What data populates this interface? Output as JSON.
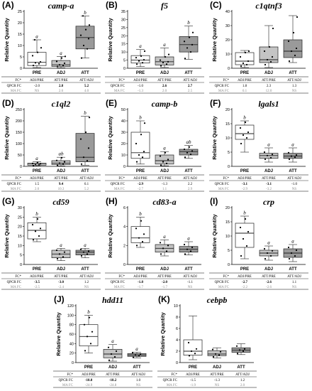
{
  "colors": {
    "PRE": "#ffffff",
    "ADJ": "#c4c4c4",
    "ATT": "#9a9a9a",
    "line": "#222222",
    "grey_text": "#8a8a8a"
  },
  "categories": [
    "PRE",
    "ADJ",
    "ATT"
  ],
  "ylabel": "Relative Quantity",
  "table_headers": [
    "FC*",
    "ADJ/PRE",
    "ATT/PRE",
    "ATT/ADJ"
  ],
  "table_row_labels": [
    "QPCR FC",
    "MA FC"
  ],
  "chart_data": [
    {
      "panel": "(A)",
      "title": "camp-a",
      "type": "box",
      "ylim": [
        0,
        25
      ],
      "yticks": [
        0,
        5,
        10,
        15,
        20,
        25
      ],
      "categories": [
        "PRE",
        "ADJ",
        "ATT"
      ],
      "boxes": [
        {
          "min": 0.3,
          "q1": 1.2,
          "median": 2.6,
          "q3": 7.0,
          "max": 12.5,
          "points": [
            1.2,
            2.0,
            2.4,
            2.8,
            5.5,
            7.0,
            9.0,
            12.5
          ]
        },
        {
          "min": 0.2,
          "q1": 0.8,
          "median": 1.5,
          "q3": 3.4,
          "max": 5.2,
          "points": [
            0.8,
            1.2,
            1.5,
            2.2,
            3.0,
            4.5,
            5.2
          ]
        },
        {
          "min": 4.5,
          "q1": 8.5,
          "median": 13.5,
          "q3": 18.5,
          "max": 23.0,
          "points": [
            4.5,
            8.5,
            10.0,
            13.0,
            14.5,
            17.0,
            19.0,
            23.0
          ]
        }
      ],
      "letters": [
        "a",
        "a",
        "b"
      ],
      "qpcr_fc": [
        "-2.0",
        "2.8",
        "5.2"
      ],
      "qpcr_bold": [
        false,
        true,
        true
      ],
      "ma_fc": [
        "NS",
        "2.6",
        "4.0"
      ]
    },
    {
      "panel": "(B)",
      "title": "f5",
      "type": "box",
      "ylim": [
        0,
        35
      ],
      "yticks": [
        0,
        5,
        10,
        15,
        20,
        25,
        30,
        35
      ],
      "categories": [
        "PRE",
        "ADJ",
        "ATT"
      ],
      "boxes": [
        {
          "min": 1.0,
          "q1": 3.2,
          "median": 5.0,
          "q3": 7.8,
          "max": 11.5,
          "points": [
            2.5,
            3.4,
            4.5,
            5.2,
            6.5,
            7.5,
            10.5
          ]
        },
        {
          "min": 0.5,
          "q1": 2.0,
          "median": 4.0,
          "q3": 7.0,
          "max": 12.5,
          "points": [
            1.5,
            2.5,
            3.5,
            4.0,
            5.0,
            7.0,
            8.5
          ]
        },
        {
          "min": 5.5,
          "q1": 10.0,
          "median": 14.5,
          "q3": 19.5,
          "max": 26.0,
          "points": [
            6.0,
            10.0,
            12.5,
            14.5,
            16.5,
            19.0,
            22.0
          ]
        }
      ],
      "letters": [
        "a",
        "a",
        "b"
      ],
      "qpcr_fc": [
        "-1.0",
        "2.6",
        "2.7"
      ],
      "qpcr_bold": [
        false,
        true,
        true
      ],
      "ma_fc": [
        "-1.3",
        "2.0",
        "2.5"
      ]
    },
    {
      "panel": "(C)",
      "title": "c1qtnf3",
      "type": "box",
      "ylim": [
        0,
        40
      ],
      "yticks": [
        0,
        10,
        20,
        30,
        40
      ],
      "categories": [
        "PRE",
        "ADJ",
        "ATT"
      ],
      "boxes": [
        {
          "min": 0.5,
          "q1": 2.5,
          "median": 5.0,
          "q3": 11.0,
          "max": 12.5,
          "points": [
            1.5,
            2.5,
            3.5,
            5.0,
            8.0,
            11.0,
            12.0
          ]
        },
        {
          "min": 0.5,
          "q1": 4.0,
          "median": 6.0,
          "q3": 15.0,
          "max": 30.0,
          "points": [
            2.5,
            4.5,
            6.0,
            8.0,
            12.0,
            15.0,
            28.0
          ]
        },
        {
          "min": 4.0,
          "q1": 7.5,
          "median": 12.0,
          "q3": 20.0,
          "max": 37.0,
          "points": [
            5.0,
            9.0,
            12.0,
            14.0,
            19.0,
            25.0,
            36.0
          ]
        }
      ],
      "letters": [
        "",
        "",
        ""
      ],
      "qpcr_fc": [
        "1.8",
        "2.3",
        "1.3"
      ],
      "qpcr_bold": [
        false,
        false,
        false
      ],
      "ma_fc": [
        "6.1",
        "12.0",
        "NS"
      ]
    },
    {
      "panel": "(D)",
      "title": "c1ql2",
      "type": "box",
      "ylim": [
        0,
        250
      ],
      "yticks": [
        0,
        50,
        100,
        150,
        200,
        250
      ],
      "categories": [
        "PRE",
        "ADJ",
        "ATT"
      ],
      "boxes": [
        {
          "min": 1.0,
          "q1": 5.0,
          "median": 10.0,
          "q3": 14.0,
          "max": 20.0,
          "points": [
            3.0,
            6.0,
            8.0,
            11.0,
            13.0,
            17.0
          ]
        },
        {
          "min": 2.0,
          "q1": 8.0,
          "median": 14.0,
          "q3": 25.0,
          "max": 40.0,
          "points": [
            5.0,
            9.0,
            14.0,
            20.0,
            26.0,
            38.0
          ]
        },
        {
          "min": 5.0,
          "q1": 20.0,
          "median": 40.0,
          "q3": 145.0,
          "max": 220.0,
          "points": [
            10.0,
            25.0,
            40.0,
            80.0,
            120.0,
            150.0,
            215.0
          ]
        }
      ],
      "letters": [
        "a",
        "ab",
        "b"
      ],
      "qpcr_fc": [
        "1.5",
        "9.4",
        "6.1"
      ],
      "qpcr_bold": [
        false,
        true,
        false
      ],
      "ma_fc": [
        "2.0",
        "10.3",
        "5.2"
      ]
    },
    {
      "panel": "(E)",
      "title": "camp-b",
      "type": "box",
      "ylim": [
        0,
        50
      ],
      "yticks": [
        0,
        10,
        20,
        30,
        40,
        50
      ],
      "categories": [
        "PRE",
        "ADJ",
        "ATT"
      ],
      "boxes": [
        {
          "min": 2.0,
          "q1": 7.0,
          "median": 12.0,
          "q3": 30.0,
          "max": 40.0,
          "points": [
            4.0,
            8.0,
            10.0,
            13.0,
            20.0,
            28.0,
            38.0
          ]
        },
        {
          "min": 0.5,
          "q1": 2.0,
          "median": 5.0,
          "q3": 10.0,
          "max": 13.0,
          "points": [
            1.0,
            2.5,
            4.0,
            6.0,
            9.0,
            12.0
          ]
        },
        {
          "min": 7.0,
          "q1": 10.0,
          "median": 13.0,
          "q3": 15.0,
          "max": 18.5,
          "points": [
            8.0,
            10.5,
            12.0,
            13.5,
            15.0,
            17.0
          ]
        }
      ],
      "letters": [
        "b",
        "a",
        "ab"
      ],
      "qpcr_fc": [
        "-2.9",
        "-1.3",
        "2.2"
      ],
      "qpcr_bold": [
        true,
        false,
        false
      ],
      "ma_fc": [
        "-2.7",
        "1.1",
        "2.9"
      ]
    },
    {
      "panel": "(F)",
      "title": "lgals1",
      "type": "box",
      "ylim": [
        0,
        20
      ],
      "yticks": [
        0,
        5,
        10,
        15,
        20
      ],
      "categories": [
        "PRE",
        "ADJ",
        "ATT"
      ],
      "boxes": [
        {
          "min": 5.0,
          "q1": 9.5,
          "median": 11.5,
          "q3": 14.5,
          "max": 16.0,
          "points": [
            8.0,
            10.0,
            11.0,
            12.0,
            13.5,
            15.5
          ]
        },
        {
          "min": 1.5,
          "q1": 2.8,
          "median": 3.8,
          "q3": 4.6,
          "max": 6.5,
          "points": [
            2.5,
            3.0,
            3.8,
            4.2,
            5.0
          ]
        },
        {
          "min": 1.5,
          "q1": 2.8,
          "median": 3.6,
          "q3": 4.6,
          "max": 6.5,
          "points": [
            2.5,
            3.2,
            3.6,
            4.0,
            4.8
          ]
        }
      ],
      "letters": [
        "b",
        "a",
        "a"
      ],
      "qpcr_fc": [
        "-3.1",
        "-3.1",
        "-1.0"
      ],
      "qpcr_bold": [
        true,
        true,
        false
      ],
      "ma_fc": [
        "-2.9",
        "-3.2",
        "NS"
      ]
    },
    {
      "panel": "(G)",
      "title": "cd59",
      "type": "box",
      "ylim": [
        0,
        30
      ],
      "yticks": [
        0,
        5,
        10,
        15,
        20,
        25,
        30
      ],
      "categories": [
        "PRE",
        "ADJ",
        "ATT"
      ],
      "boxes": [
        {
          "min": 12.0,
          "q1": 13.5,
          "median": 18.0,
          "q3": 22.0,
          "max": 25.0,
          "points": [
            13.0,
            15.0,
            17.5,
            19.0,
            21.0,
            24.0
          ]
        },
        {
          "min": 2.0,
          "q1": 3.5,
          "median": 5.5,
          "q3": 7.5,
          "max": 8.5,
          "points": [
            3.0,
            4.0,
            5.5,
            6.5,
            7.5
          ]
        },
        {
          "min": 3.5,
          "q1": 5.0,
          "median": 6.5,
          "q3": 7.5,
          "max": 8.5,
          "points": [
            4.5,
            5.5,
            6.5,
            7.0,
            8.0
          ]
        }
      ],
      "letters": [
        "b",
        "a",
        "a"
      ],
      "qpcr_fc": [
        "-3.5",
        "-3.0",
        "1.2"
      ],
      "qpcr_bold": [
        true,
        true,
        false
      ],
      "ma_fc": [
        "-2.5",
        "-2.4",
        "NS"
      ]
    },
    {
      "panel": "(H)",
      "title": "cd83-a",
      "type": "box",
      "ylim": [
        0,
        6
      ],
      "yticks": [
        0,
        2,
        4,
        6
      ],
      "categories": [
        "PRE",
        "ADJ",
        "ATT"
      ],
      "boxes": [
        {
          "min": 1.8,
          "q1": 2.3,
          "median": 2.8,
          "q3": 4.0,
          "max": 5.0,
          "points": [
            2.0,
            2.4,
            2.8,
            3.2,
            3.8,
            4.6
          ]
        },
        {
          "min": 0.9,
          "q1": 1.3,
          "median": 1.7,
          "q3": 2.1,
          "max": 2.6,
          "points": [
            1.1,
            1.4,
            1.7,
            2.0,
            2.3
          ]
        },
        {
          "min": 1.0,
          "q1": 1.3,
          "median": 1.6,
          "q3": 1.9,
          "max": 2.4,
          "points": [
            1.1,
            1.4,
            1.6,
            1.8,
            2.1
          ]
        }
      ],
      "letters": [
        "b",
        "a",
        "a"
      ],
      "qpcr_fc": [
        "-1.8",
        "-2.0",
        "-1.1"
      ],
      "qpcr_bold": [
        true,
        true,
        false
      ],
      "ma_fc": [
        "-1.7",
        "-1.7",
        "NS"
      ]
    },
    {
      "panel": "(I)",
      "title": "crp",
      "type": "box",
      "ylim": [
        0,
        20
      ],
      "yticks": [
        0,
        5,
        10,
        15,
        20
      ],
      "categories": [
        "PRE",
        "ADJ",
        "ATT"
      ],
      "boxes": [
        {
          "min": 2.0,
          "q1": 6.0,
          "median": 11.0,
          "q3": 14.5,
          "max": 17.0,
          "points": [
            3.0,
            6.5,
            9.0,
            11.5,
            13.0,
            16.0
          ]
        },
        {
          "min": 1.5,
          "q1": 3.0,
          "median": 4.0,
          "q3": 5.0,
          "max": 6.5,
          "points": [
            2.0,
            3.0,
            4.0,
            4.8,
            5.5
          ]
        },
        {
          "min": 1.0,
          "q1": 2.5,
          "median": 4.0,
          "q3": 5.5,
          "max": 7.0,
          "points": [
            2.0,
            3.0,
            4.0,
            5.0,
            6.0
          ]
        }
      ],
      "letters": [
        "b",
        "a",
        "a"
      ],
      "qpcr_fc": [
        "-2.7",
        "-2.6",
        "1.1"
      ],
      "qpcr_bold": [
        true,
        true,
        false
      ],
      "ma_fc": [
        "-2.2",
        "-2.6",
        "NS"
      ]
    },
    {
      "panel": "(J)",
      "title": "hdd11",
      "type": "box",
      "ylim": [
        0,
        120
      ],
      "yticks": [
        0,
        20,
        40,
        60,
        80,
        100,
        120
      ],
      "categories": [
        "PRE",
        "ADJ",
        "ATT"
      ],
      "boxes": [
        {
          "min": 20.0,
          "q1": 35.0,
          "median": 55.0,
          "q3": 80.0,
          "max": 100.0,
          "points": [
            25.0,
            40.0,
            55.0,
            65.0,
            80.0,
            95.0
          ]
        },
        {
          "min": 3.0,
          "q1": 10.0,
          "median": 18.0,
          "q3": 28.0,
          "max": 38.0,
          "points": [
            5.0,
            12.0,
            18.0,
            24.0,
            32.0
          ]
        },
        {
          "min": 10.0,
          "q1": 13.0,
          "median": 16.0,
          "q3": 19.0,
          "max": 22.0,
          "points": [
            11.0,
            14.0,
            16.0,
            18.0,
            21.0
          ]
        }
      ],
      "letters": [
        "b",
        "a",
        "a"
      ],
      "qpcr_fc": [
        "-18.8",
        "-18.2",
        "1.0"
      ],
      "qpcr_bold": [
        true,
        true,
        false
      ],
      "ma_fc": [
        "-24.9",
        "-24.8",
        "NS"
      ]
    },
    {
      "panel": "(K)",
      "title": "cebpb",
      "type": "box",
      "ylim": [
        0,
        10
      ],
      "yticks": [
        0,
        2,
        4,
        6,
        8,
        10
      ],
      "categories": [
        "PRE",
        "ADJ",
        "ATT"
      ],
      "boxes": [
        {
          "min": 0.5,
          "q1": 1.3,
          "median": 2.0,
          "q3": 4.0,
          "max": 8.2,
          "points": [
            1.2,
            1.6,
            2.0,
            2.4,
            3.5
          ]
        },
        {
          "min": 0.8,
          "q1": 1.2,
          "median": 1.5,
          "q3": 2.1,
          "max": 2.6,
          "points": [
            1.0,
            1.3,
            1.5,
            1.9,
            2.3
          ]
        },
        {
          "min": 1.4,
          "q1": 1.8,
          "median": 2.2,
          "q3": 2.6,
          "max": 3.3,
          "points": [
            1.6,
            2.0,
            2.2,
            2.4,
            2.9
          ]
        }
      ],
      "letters": [
        "",
        "",
        ""
      ],
      "qpcr_fc": [
        "-1.5",
        "-1.3",
        "1.2"
      ],
      "qpcr_bold": [
        false,
        false,
        false
      ],
      "ma_fc": [
        "-1.9",
        "NS",
        "2.0"
      ]
    }
  ]
}
